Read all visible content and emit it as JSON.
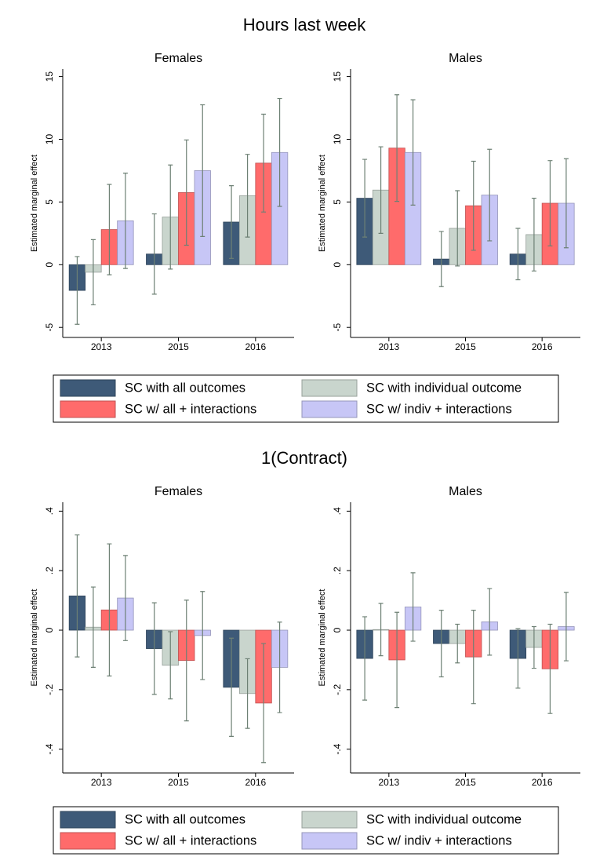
{
  "chart_data": [
    {
      "type": "bar",
      "title": "Hours last week",
      "subtitle": "Females",
      "ylabel": "Estimated marginal effect",
      "categories": [
        "2013",
        "2015",
        "2016"
      ],
      "ylim": [
        -5.8,
        15.6
      ],
      "yticks": [
        -5,
        0,
        5,
        10,
        15
      ],
      "series": [
        {
          "name": "SC with all outcomes",
          "color": "#3e5a78",
          "values": [
            -2.05,
            0.85,
            3.4
          ],
          "errors": [
            2.7,
            3.2,
            2.9
          ]
        },
        {
          "name": "SC with individual outcome",
          "color": "#c9d5cd",
          "values": [
            -0.6,
            3.8,
            5.5
          ],
          "errors": [
            2.6,
            4.15,
            3.3
          ]
        },
        {
          "name": "SC w/ all + interactions",
          "color": "#ff6b6b",
          "values": [
            2.8,
            5.75,
            8.1
          ],
          "errors": [
            3.6,
            4.2,
            3.9
          ]
        },
        {
          "name": "SC w/ indiv + interactions",
          "color": "#c7c6f6",
          "values": [
            3.5,
            7.5,
            8.95
          ],
          "errors": [
            3.8,
            5.25,
            4.3
          ]
        }
      ]
    },
    {
      "type": "bar",
      "subtitle": "Males",
      "ylabel": "Estimated marginal effect",
      "categories": [
        "2013",
        "2015",
        "2016"
      ],
      "ylim": [
        -5.8,
        15.6
      ],
      "yticks": [
        -5,
        0,
        5,
        10,
        15
      ],
      "series": [
        {
          "name": "SC with all outcomes",
          "color": "#3e5a78",
          "values": [
            5.3,
            0.45,
            0.85
          ],
          "errors": [
            3.1,
            2.2,
            2.05
          ]
        },
        {
          "name": "SC with individual outcome",
          "color": "#c9d5cd",
          "values": [
            5.95,
            2.9,
            2.4
          ],
          "errors": [
            3.45,
            3.0,
            2.9
          ]
        },
        {
          "name": "SC w/ all + interactions",
          "color": "#ff6b6b",
          "values": [
            9.3,
            4.7,
            4.9
          ],
          "errors": [
            4.25,
            3.55,
            3.4
          ]
        },
        {
          "name": "SC w/ indiv + interactions",
          "color": "#c7c6f6",
          "values": [
            8.95,
            5.55,
            4.9
          ],
          "errors": [
            4.2,
            3.65,
            3.55
          ]
        }
      ]
    },
    {
      "type": "bar",
      "title": "1(Contract)",
      "subtitle": "Females",
      "ylabel": "Estimated marginal effect",
      "categories": [
        "2013",
        "2015",
        "2016"
      ],
      "ylim": [
        -0.48,
        0.43
      ],
      "yticks": [
        {
          "value": -0.4,
          "label": "-.4"
        },
        {
          "value": -0.2,
          "label": "-.2"
        },
        0,
        {
          "value": 0.2,
          "label": ".2"
        },
        {
          "value": 0.4,
          "label": ".4"
        }
      ],
      "series": [
        {
          "name": "SC with all outcomes",
          "color": "#3e5a78",
          "values": [
            0.115,
            -0.062,
            -0.192
          ],
          "errors": [
            0.205,
            0.154,
            0.165
          ]
        },
        {
          "name": "SC with individual outcome",
          "color": "#c9d5cd",
          "values": [
            0.01,
            -0.118,
            -0.213
          ],
          "errors": [
            0.135,
            0.113,
            0.117
          ]
        },
        {
          "name": "SC w/ all + interactions",
          "color": "#ff6b6b",
          "values": [
            0.068,
            -0.102,
            -0.245
          ],
          "errors": [
            0.222,
            0.203,
            0.2
          ]
        },
        {
          "name": "SC w/ indiv + interactions",
          "color": "#c7c6f6",
          "values": [
            0.108,
            -0.018,
            -0.125
          ],
          "errors": [
            0.143,
            0.148,
            0.152
          ]
        }
      ]
    },
    {
      "type": "bar",
      "subtitle": "Males",
      "ylabel": "Estimated marginal effect",
      "categories": [
        "2013",
        "2015",
        "2016"
      ],
      "ylim": [
        -0.48,
        0.43
      ],
      "yticks": [
        {
          "value": -0.4,
          "label": "-.4"
        },
        {
          "value": -0.2,
          "label": "-.2"
        },
        0,
        {
          "value": 0.2,
          "label": ".2"
        },
        {
          "value": 0.4,
          "label": ".4"
        }
      ],
      "series": [
        {
          "name": "SC with all outcomes",
          "color": "#3e5a78",
          "values": [
            -0.095,
            -0.045,
            -0.095
          ],
          "errors": [
            0.14,
            0.112,
            0.1
          ]
        },
        {
          "name": "SC with individual outcome",
          "color": "#c9d5cd",
          "values": [
            0.002,
            -0.045,
            -0.058
          ],
          "errors": [
            0.088,
            0.065,
            0.07
          ]
        },
        {
          "name": "SC w/ all + interactions",
          "color": "#ff6b6b",
          "values": [
            -0.1,
            -0.09,
            -0.13
          ],
          "errors": [
            0.16,
            0.157,
            0.15
          ]
        },
        {
          "name": "SC w/ indiv + interactions",
          "color": "#c7c6f6",
          "values": [
            0.078,
            0.028,
            0.012
          ],
          "errors": [
            0.115,
            0.112,
            0.115
          ]
        }
      ]
    }
  ]
}
